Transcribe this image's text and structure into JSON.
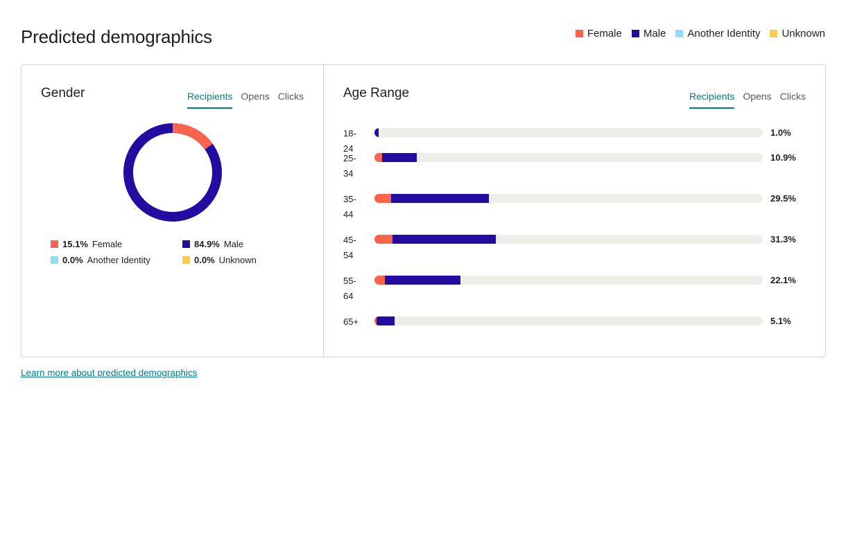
{
  "page": {
    "title": "Predicted demographics"
  },
  "legend": [
    {
      "label": "Female",
      "color": "#f8644c"
    },
    {
      "label": "Male",
      "color": "#230da1"
    },
    {
      "label": "Another Identity",
      "color": "#94dcf5"
    },
    {
      "label": "Unknown",
      "color": "#fbcb4f"
    }
  ],
  "gender": {
    "title": "Gender",
    "tabs": [
      "Recipients",
      "Opens",
      "Clicks"
    ],
    "active_tab": "Recipients",
    "items": [
      {
        "value": "15.1%",
        "label": "Female",
        "color": "#f8644c",
        "pct": 15.1
      },
      {
        "value": "84.9%",
        "label": "Male",
        "color": "#230da1",
        "pct": 84.9
      },
      {
        "value": "0.0%",
        "label": "Another Identity",
        "color": "#94dcf5",
        "pct": 0.0
      },
      {
        "value": "0.0%",
        "label": "Unknown",
        "color": "#fbcb4f",
        "pct": 0.0
      }
    ]
  },
  "age": {
    "title": "Age Range",
    "tabs": [
      "Recipients",
      "Opens",
      "Clicks"
    ],
    "active_tab": "Recipients",
    "rows": [
      {
        "label_line1": "18-24",
        "label_line2": "",
        "value": "1.0%",
        "female_share": 0.0,
        "total": 1.0
      },
      {
        "label_line1": "25-",
        "label_line2": "34",
        "value": "10.9%",
        "female_share": 2.0,
        "total": 10.9
      },
      {
        "label_line1": "35-",
        "label_line2": "44",
        "value": "29.5%",
        "female_share": 4.2,
        "total": 29.5
      },
      {
        "label_line1": "45-",
        "label_line2": "54",
        "value": "31.3%",
        "female_share": 4.6,
        "total": 31.3
      },
      {
        "label_line1": "55-",
        "label_line2": "64",
        "value": "22.1%",
        "female_share": 2.6,
        "total": 22.1
      },
      {
        "label_line1": "65+",
        "label_line2": "",
        "value": "5.1%",
        "female_share": 0.5,
        "total": 5.1
      }
    ],
    "scale_max": 100
  },
  "footer": {
    "link_text": "Learn more about predicted demographics"
  }
}
